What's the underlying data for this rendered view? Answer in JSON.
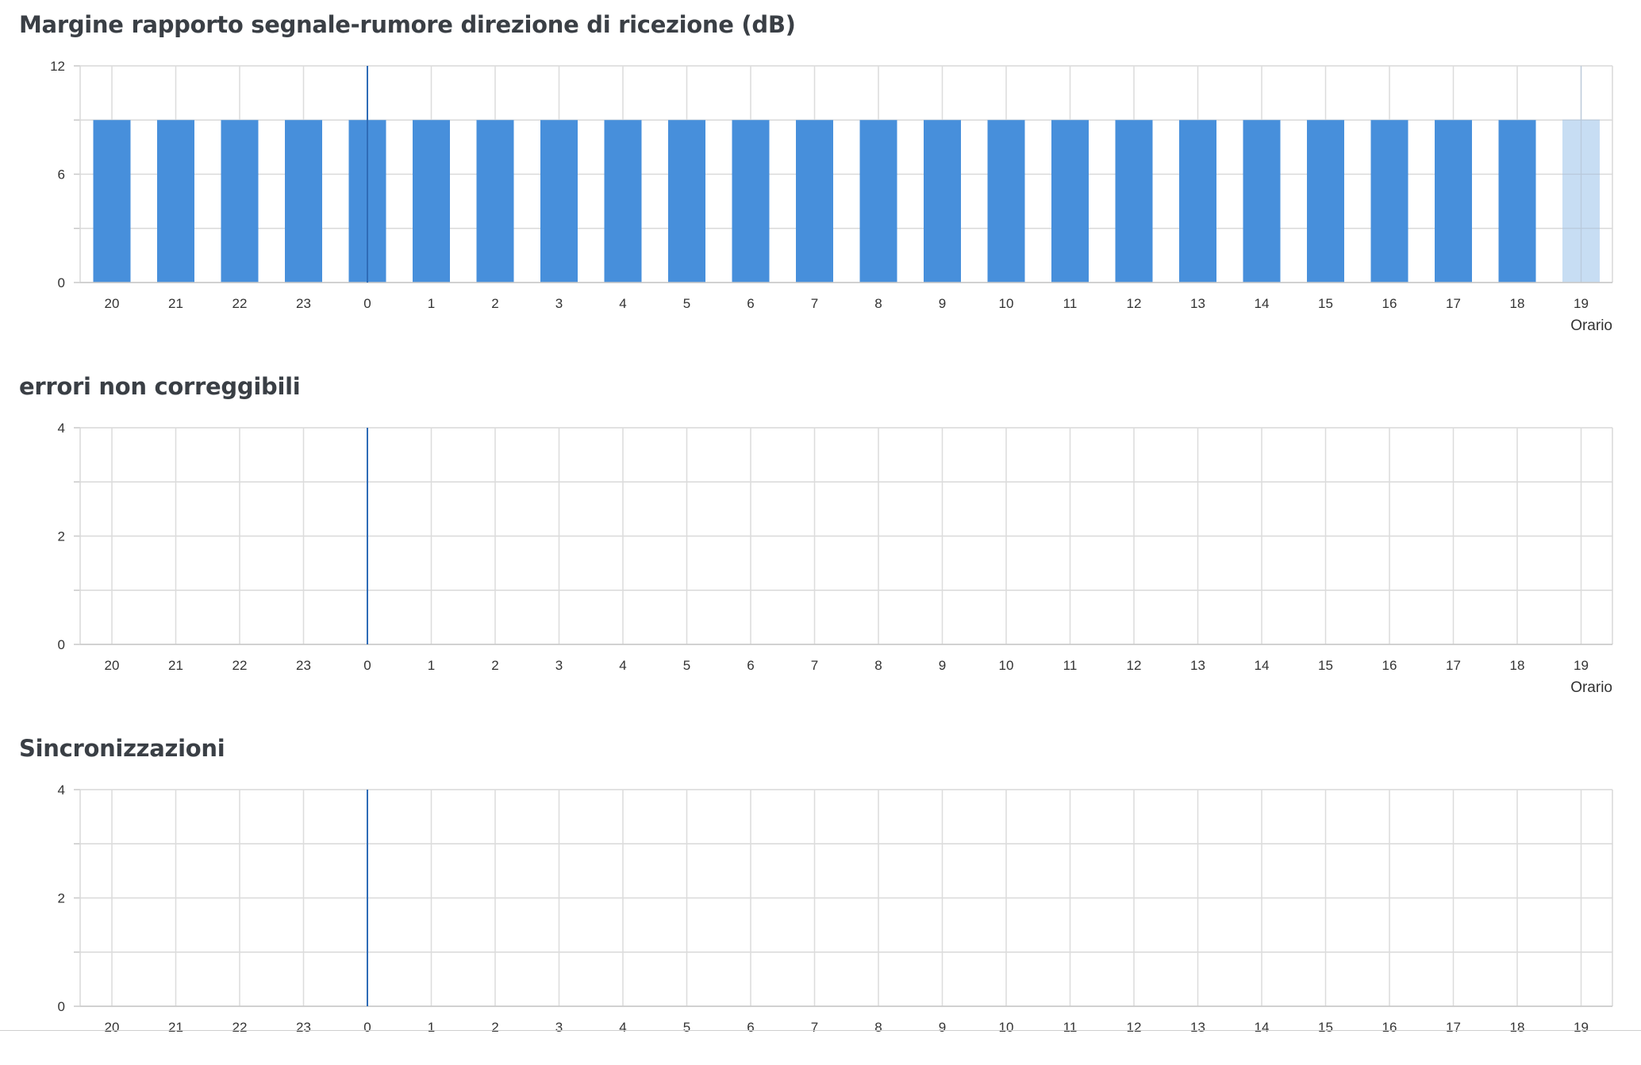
{
  "chart_data": [
    {
      "type": "bar",
      "title": "Margine rapporto segnale-rumore direzione di ricezione (dB)",
      "xlabel": "Orario",
      "ylabel": "",
      "categories": [
        "20",
        "21",
        "22",
        "23",
        "0",
        "1",
        "2",
        "3",
        "4",
        "5",
        "6",
        "7",
        "8",
        "9",
        "10",
        "11",
        "12",
        "13",
        "14",
        "15",
        "16",
        "17",
        "18",
        "19"
      ],
      "values": [
        9,
        9,
        9,
        9,
        9,
        9,
        9,
        9,
        9,
        9,
        9,
        9,
        9,
        9,
        9,
        9,
        9,
        9,
        9,
        9,
        9,
        9,
        9,
        9
      ],
      "ylim": [
        0,
        12
      ],
      "yticks": [
        "0",
        "6",
        "12"
      ],
      "grid": true,
      "bar_color": "#478fdb",
      "highlight_color": "#c7ddf3",
      "highlight_index": 23,
      "marker_category": "0",
      "marker_color": "#2f6cb7"
    },
    {
      "type": "bar",
      "title": "errori non correggibili",
      "xlabel": "Orario",
      "ylabel": "",
      "categories": [
        "20",
        "21",
        "22",
        "23",
        "0",
        "1",
        "2",
        "3",
        "4",
        "5",
        "6",
        "7",
        "8",
        "9",
        "10",
        "11",
        "12",
        "13",
        "14",
        "15",
        "16",
        "17",
        "18",
        "19"
      ],
      "values": [
        0,
        0,
        0,
        0,
        0,
        0,
        0,
        0,
        0,
        0,
        0,
        0,
        0,
        0,
        0,
        0,
        0,
        0,
        0,
        0,
        0,
        0,
        0,
        0
      ],
      "ylim": [
        0,
        4
      ],
      "yticks": [
        "0",
        "2",
        "4"
      ],
      "grid": true,
      "bar_color": "#478fdb",
      "marker_category": "0",
      "marker_color": "#2f6cb7"
    },
    {
      "type": "bar",
      "title": "Sincronizzazioni",
      "xlabel": "",
      "ylabel": "",
      "categories": [
        "20",
        "21",
        "22",
        "23",
        "0",
        "1",
        "2",
        "3",
        "4",
        "5",
        "6",
        "7",
        "8",
        "9",
        "10",
        "11",
        "12",
        "13",
        "14",
        "15",
        "16",
        "17",
        "18",
        "19"
      ],
      "values": [
        0,
        0,
        0,
        0,
        0,
        0,
        0,
        0,
        0,
        0,
        0,
        0,
        0,
        0,
        0,
        0,
        0,
        0,
        0,
        0,
        0,
        0,
        0,
        0
      ],
      "ylim": [
        0,
        4
      ],
      "yticks": [
        "0",
        "2",
        "4"
      ],
      "grid": true,
      "bar_color": "#478fdb",
      "marker_category": "0",
      "marker_color": "#2f6cb7"
    }
  ]
}
